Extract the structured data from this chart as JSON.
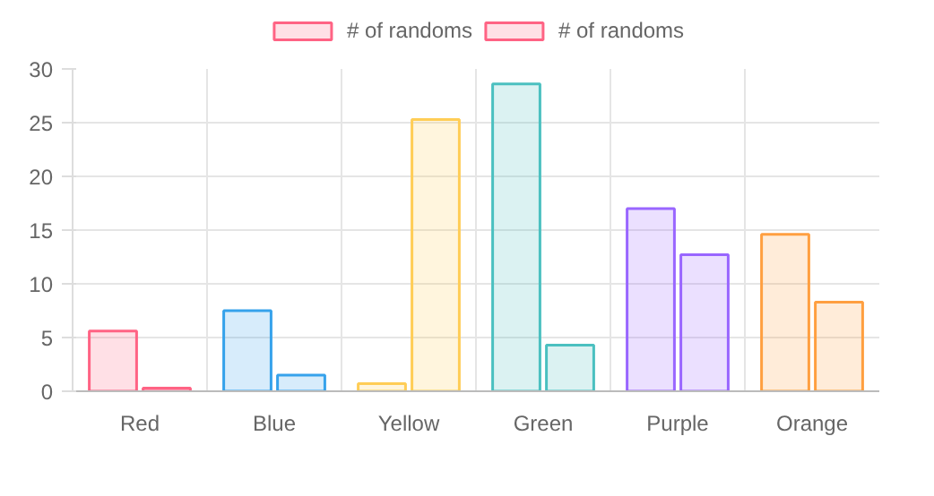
{
  "chart_data": {
    "type": "bar",
    "categories": [
      "Red",
      "Blue",
      "Yellow",
      "Green",
      "Purple",
      "Orange"
    ],
    "series": [
      {
        "name": "# of randoms",
        "color": "#ff6384",
        "colors": [
          "#ff6384",
          "#36a2eb",
          "#ffcd56",
          "#4bc0c0",
          "#9966ff",
          "#ff9f40"
        ],
        "values": [
          5.6,
          7.5,
          0.7,
          28.6,
          17.0,
          14.6
        ]
      },
      {
        "name": "# of randoms",
        "color": "#ff6384",
        "colors": [
          "#ff6384",
          "#36a2eb",
          "#ffcd56",
          "#4bc0c0",
          "#9966ff",
          "#ff9f40"
        ],
        "values": [
          0.3,
          1.5,
          25.3,
          4.3,
          12.7,
          8.3
        ]
      }
    ],
    "ylim": [
      0,
      30
    ],
    "yticks": [
      0,
      5,
      10,
      15,
      20,
      25,
      30
    ],
    "grid": true,
    "legend": "top"
  }
}
